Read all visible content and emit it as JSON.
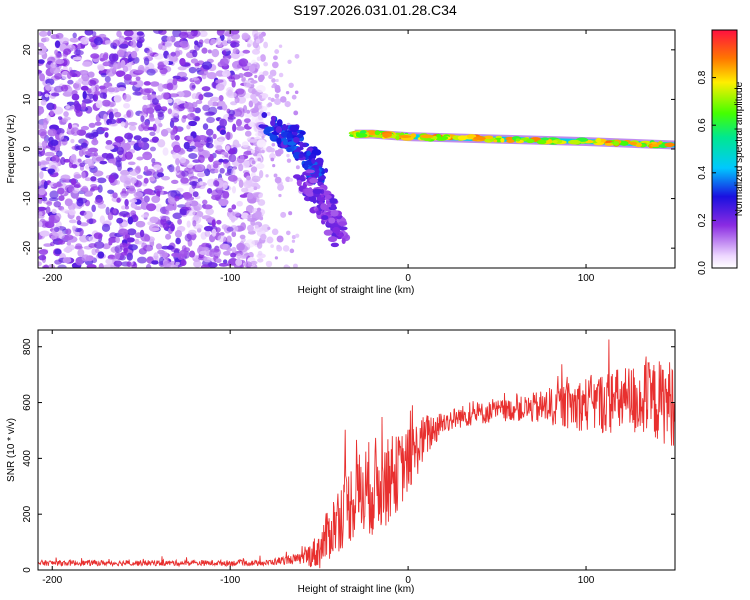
{
  "title": "S197.2026.031.01.28.C34",
  "colors": {
    "snr_line": "#e8302f",
    "axis": "#000000"
  },
  "chart_data": [
    {
      "type": "heatmap",
      "name": "spectrogram",
      "title": "S197.2026.031.01.28.C34",
      "xlabel": "Height of straight line (km)",
      "ylabel": "Frequency (Hz)",
      "xlim": [
        -208,
        150
      ],
      "ylim": [
        -24,
        24
      ],
      "xticks": [
        -200,
        -100,
        0,
        100
      ],
      "xtick_labels": [
        "-200",
        "-100",
        "0",
        "100"
      ],
      "yticks": [
        -20,
        -10,
        0,
        10,
        20
      ],
      "ytick_labels": [
        "-20",
        "-10",
        "0",
        "10",
        "20"
      ],
      "colorbar": {
        "label": "Normalized spectral amplitude",
        "range": [
          0,
          1
        ],
        "ticks": [
          0.0,
          0.2,
          0.4,
          0.6,
          0.8
        ],
        "tick_labels": [
          "0.0",
          "0.2",
          "0.4",
          "0.6",
          "0.8"
        ]
      },
      "features": {
        "noise_region_km": [
          -208,
          -85
        ],
        "noise_amplitude": [
          0.05,
          0.25
        ],
        "converging_branches": [
          {
            "points": [
              [
                -80,
                5
              ],
              [
                -65,
                2
              ],
              [
                -55,
                -2
              ],
              [
                -50,
                -6
              ]
            ],
            "amplitude": 0.3
          },
          {
            "points": [
              [
                -60,
                -6
              ],
              [
                -45,
                -12
              ],
              [
                -38,
                -17
              ]
            ],
            "amplitude": 0.2
          }
        ],
        "carrier_line": {
          "points": [
            [
              -30,
              3
            ],
            [
              -20,
              3
            ],
            [
              0,
              2.5
            ],
            [
              50,
              2
            ],
            [
              100,
              1.5
            ],
            [
              150,
              0.8
            ]
          ],
          "amplitude": [
            0.6,
            0.9
          ]
        }
      }
    },
    {
      "type": "line",
      "name": "snr",
      "xlabel": "Height of straight line (km)",
      "ylabel": "SNR (10 * v/v)",
      "xlim": [
        -208,
        150
      ],
      "ylim": [
        0,
        860
      ],
      "xticks": [
        -200,
        -100,
        0,
        100
      ],
      "xtick_labels": [
        "-200",
        "-100",
        "0",
        "100"
      ],
      "yticks": [
        0,
        200,
        400,
        600,
        800
      ],
      "ytick_labels": [
        "0",
        "200",
        "400",
        "600",
        "800"
      ],
      "envelope_x": [
        -208,
        -80,
        -70,
        -60,
        -50,
        -40,
        -30,
        -20,
        -10,
        0,
        10,
        20,
        30,
        50,
        70,
        90,
        110,
        130,
        150
      ],
      "envelope_y": [
        25,
        25,
        35,
        40,
        70,
        180,
        260,
        300,
        320,
        390,
        480,
        530,
        550,
        570,
        580,
        590,
        600,
        610,
        600
      ],
      "noise_x": [
        -208,
        -80,
        -60,
        -40,
        -20,
        0,
        20,
        60,
        100,
        150
      ],
      "noise_y": [
        10,
        10,
        20,
        120,
        180,
        120,
        40,
        40,
        100,
        160
      ]
    }
  ]
}
